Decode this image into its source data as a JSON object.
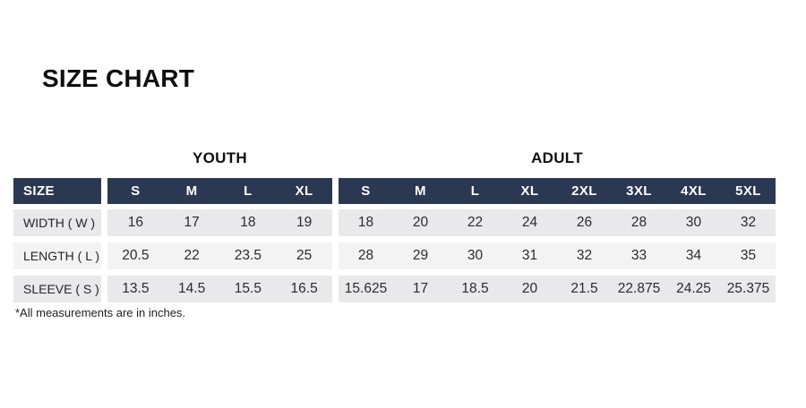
{
  "title": "SIZE CHART",
  "footnote": "*All measurements are in inches.",
  "colors": {
    "header_bg": "#2b3852",
    "header_text": "#ffffff",
    "row_gray": "#e9e9eb",
    "row_light": "#f3f3f4",
    "body_text": "#2b2b2b"
  },
  "chart_data": {
    "type": "table",
    "title": "SIZE CHART",
    "corner_label": "SIZE",
    "units_note": "*All measurements are in inches.",
    "column_groups": [
      {
        "label": "YOUTH",
        "columns": [
          "S",
          "M",
          "L",
          "XL"
        ]
      },
      {
        "label": "ADULT",
        "columns": [
          "S",
          "M",
          "L",
          "XL",
          "2XL",
          "3XL",
          "4XL",
          "5XL"
        ]
      }
    ],
    "rows": [
      {
        "label": "WIDTH ( W )",
        "measure": "Width",
        "youth": [
          16,
          17,
          18,
          19
        ],
        "adult": [
          18,
          20,
          22,
          24,
          26,
          28,
          30,
          32
        ]
      },
      {
        "label": "LENGTH ( L )",
        "measure": "Length",
        "youth": [
          20.5,
          22,
          23.5,
          25
        ],
        "adult": [
          28,
          29,
          30,
          31,
          32,
          33,
          34,
          35
        ]
      },
      {
        "label": "SLEEVE ( S )",
        "measure": "Sleeve",
        "youth": [
          13.5,
          14.5,
          15.5,
          16.5
        ],
        "adult": [
          15.625,
          17,
          18.5,
          20,
          21.5,
          22.875,
          24.25,
          25.375
        ]
      }
    ]
  }
}
